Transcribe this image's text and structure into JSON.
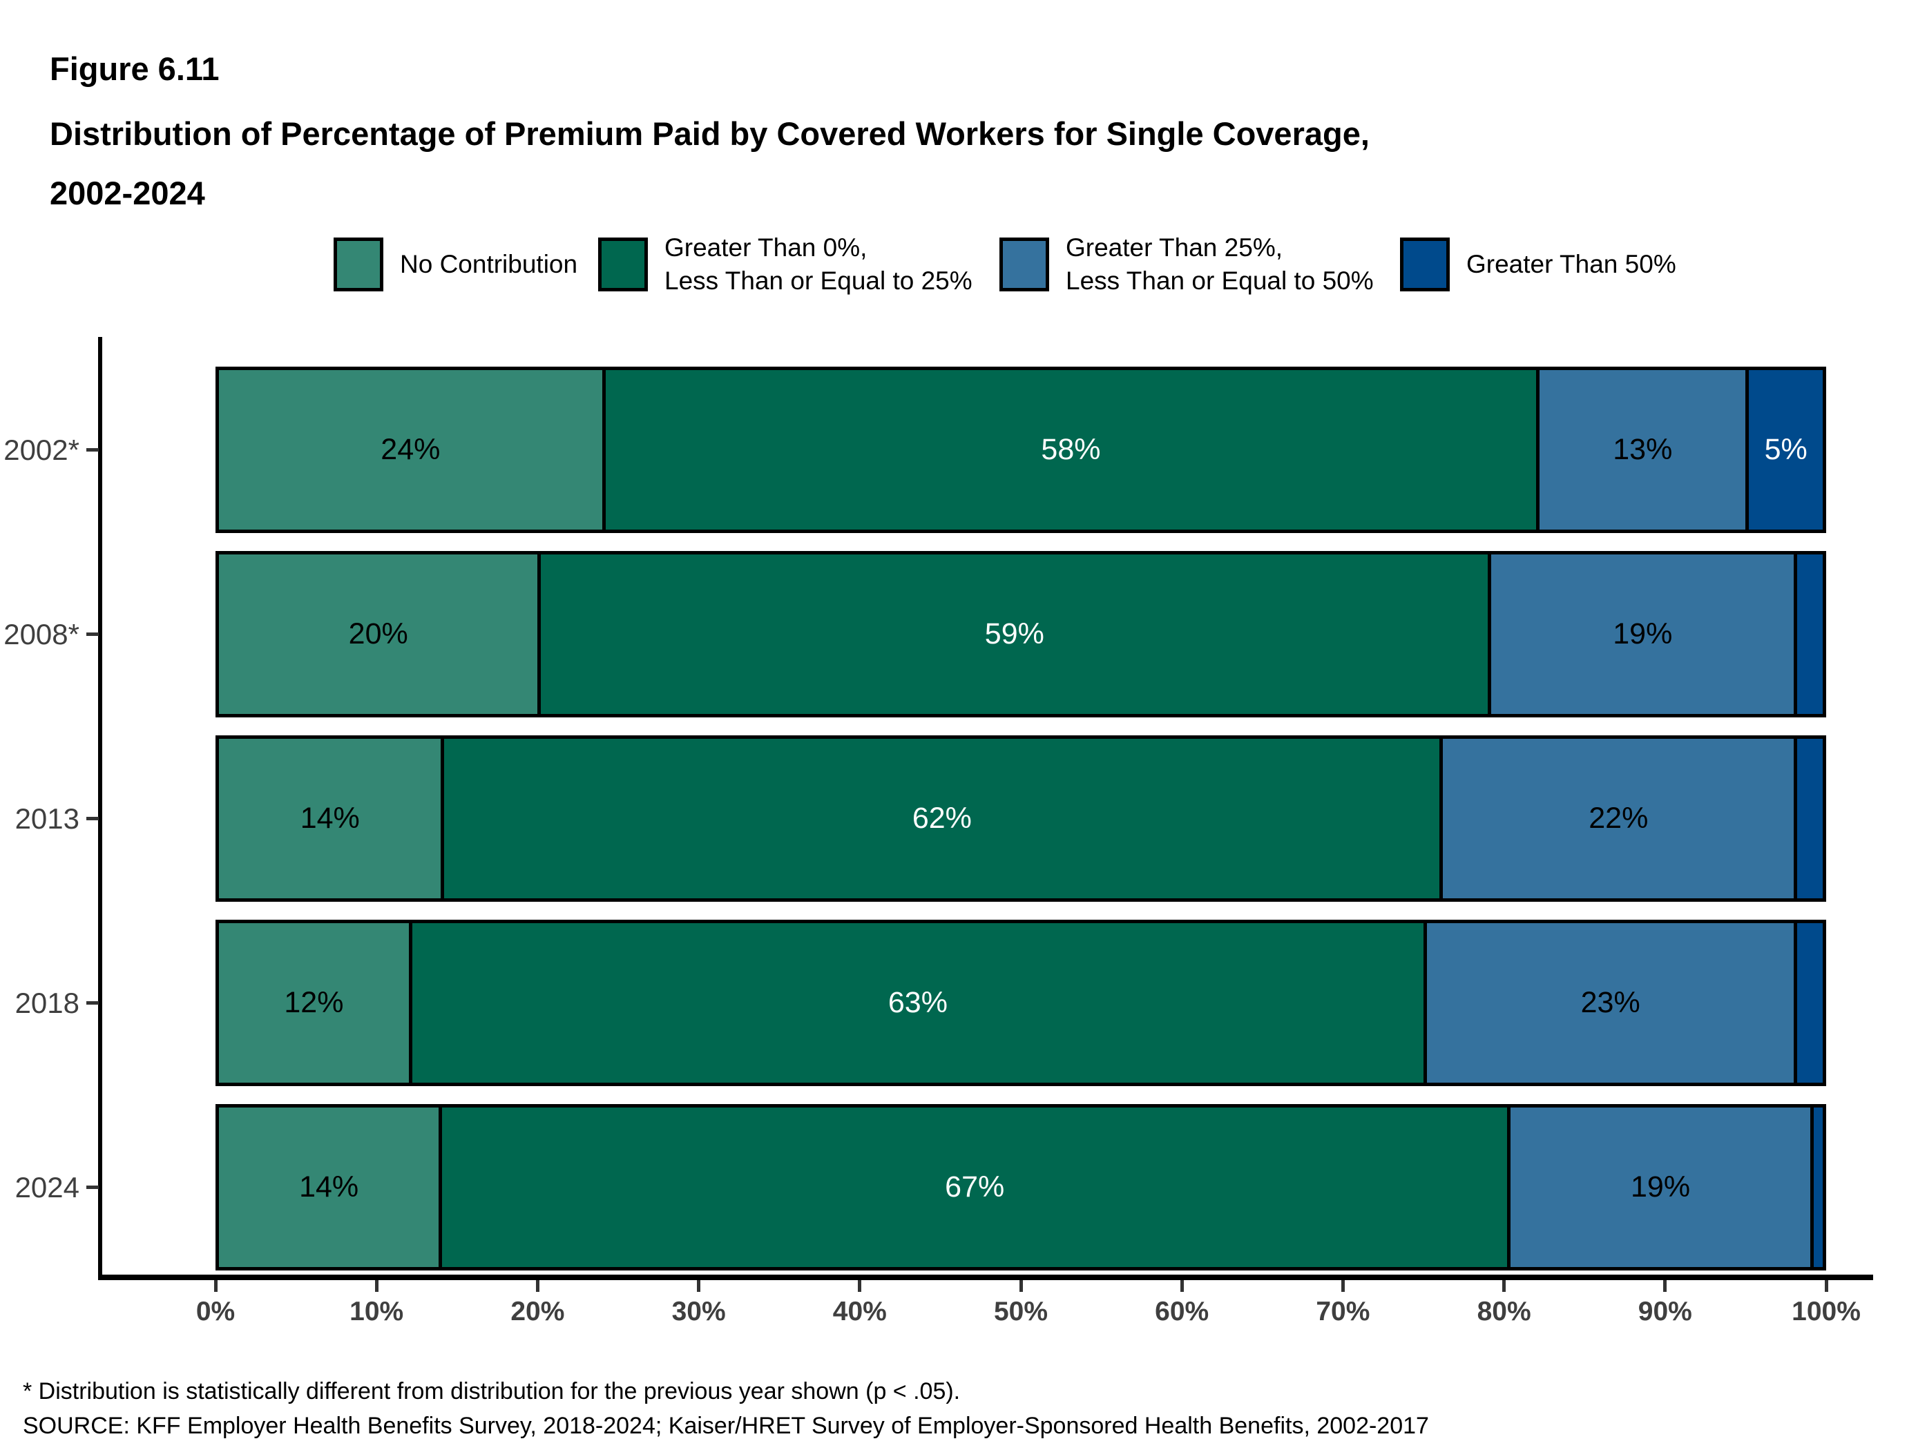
{
  "title": {
    "figure_label": "Figure 6.11",
    "line1": "Distribution of Percentage of Premium Paid by Covered Workers for Single Coverage,",
    "line2": "2002-2024"
  },
  "legend": {
    "items": [
      {
        "line1": "No Contribution",
        "line2": "",
        "color": "#348774"
      },
      {
        "line1": "Greater Than 0%,",
        "line2": "Less Than or Equal to 25%",
        "color": "#00674F"
      },
      {
        "line1": "Greater Than 25%,",
        "line2": "Less Than or Equal to 50%",
        "color": "#35729E"
      },
      {
        "line1": "Greater Than 50%",
        "line2": "",
        "color": "#004A8C"
      }
    ]
  },
  "chart_data": {
    "type": "bar",
    "stacked": true,
    "orientation": "horizontal",
    "title": "Distribution of Percentage of Premium Paid by Covered Workers for Single Coverage, 2002-2024",
    "categories": [
      "2002*",
      "2008*",
      "2013",
      "2018",
      "2024"
    ],
    "series": [
      {
        "name": "No Contribution",
        "color": "#348774",
        "label_color": "#000000",
        "values": [
          24,
          20,
          14,
          12,
          14
        ]
      },
      {
        "name": "Greater Than 0%, Less Than or Equal to 25%",
        "color": "#00674F",
        "label_color": "#FFFFFF",
        "values": [
          58,
          59,
          62,
          63,
          67
        ]
      },
      {
        "name": "Greater Than 25%, Less Than or Equal to 50%",
        "color": "#35729E",
        "label_color": "#000000",
        "values": [
          13,
          19,
          22,
          23,
          19
        ]
      },
      {
        "name": "Greater Than 50%",
        "color": "#004A8C",
        "label_color": "#FFFFFF",
        "values": [
          5,
          2,
          2,
          2,
          1
        ]
      }
    ],
    "value_suffix": "%",
    "data_label_min_value": 5,
    "x_axis": {
      "range": [
        0,
        100
      ],
      "tick_labels": [
        "0%",
        "10%",
        "20%",
        "30%",
        "40%",
        "50%",
        "60%",
        "70%",
        "80%",
        "90%",
        "100%"
      ]
    },
    "xlabel": "",
    "ylabel": "",
    "grid": false,
    "legend_position": "top",
    "note": "Segments smaller than 5% are drawn without data labels (estimated from pixels: 2008* 2%, 2013 2%, 2018 2%, 2024 1%)"
  },
  "footnotes": {
    "asterisk": "* Distribution is statistically different from distribution for the previous year shown (p < .05).",
    "source": "SOURCE: KFF Employer Health Benefits Survey, 2018-2024; Kaiser/HRET Survey of Employer-Sponsored Health Benefits, 2002-2017"
  }
}
